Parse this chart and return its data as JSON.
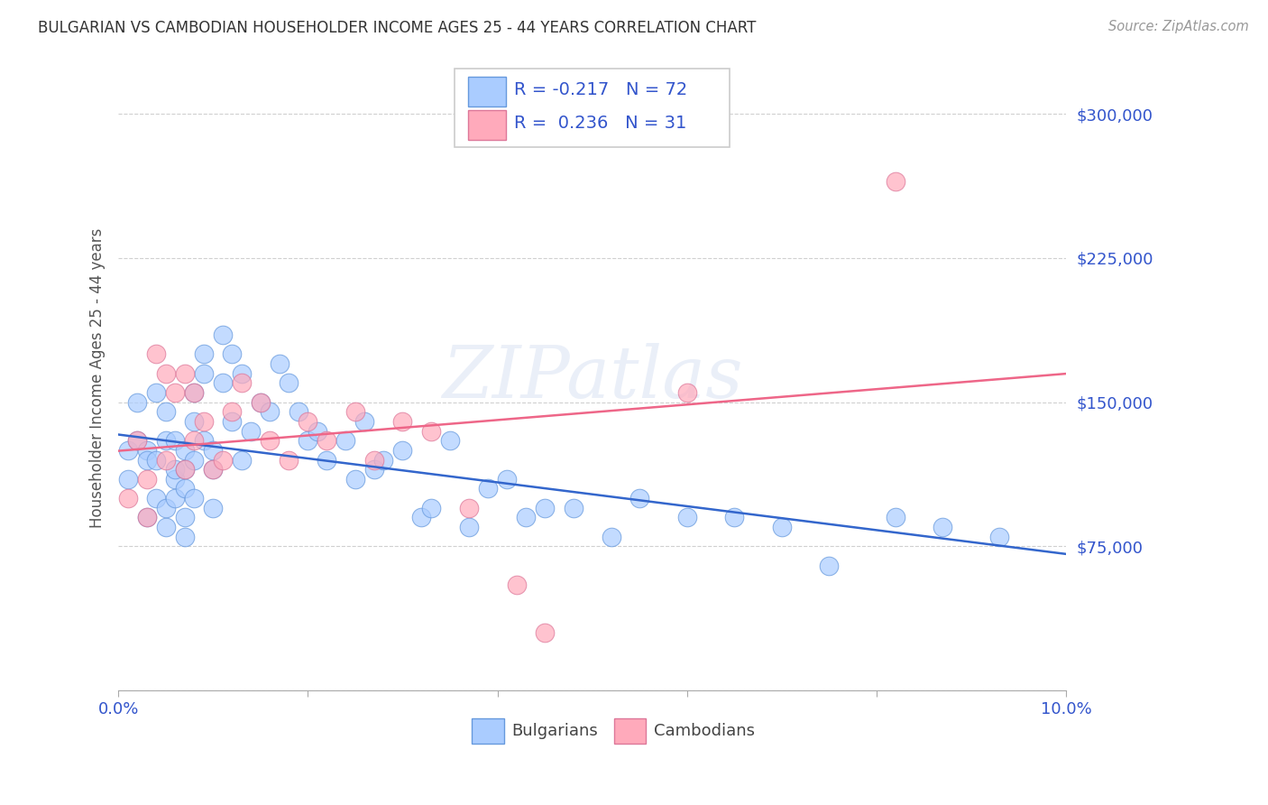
{
  "title": "BULGARIAN VS CAMBODIAN HOUSEHOLDER INCOME AGES 25 - 44 YEARS CORRELATION CHART",
  "source": "Source: ZipAtlas.com",
  "ylabel": "Householder Income Ages 25 - 44 years",
  "xlim": [
    0.0,
    0.1
  ],
  "ylim": [
    0,
    325000
  ],
  "yticks": [
    0,
    75000,
    150000,
    225000,
    300000
  ],
  "xticks": [
    0.0,
    0.02,
    0.04,
    0.06,
    0.08,
    0.1
  ],
  "background_color": "#ffffff",
  "grid_color": "#d0d0d0",
  "bulgarian_color": "#aaccff",
  "cambodian_color": "#ffaabb",
  "bulgarian_edge_color": "#6699dd",
  "cambodian_edge_color": "#dd7799",
  "bulgarian_line_color": "#3366cc",
  "cambodian_line_color": "#ee6688",
  "legend_bulgarian_label": "Bulgarians",
  "legend_cambodian_label": "Cambodians",
  "R_bulgarian": -0.217,
  "N_bulgarian": 72,
  "R_cambodian": 0.236,
  "N_cambodian": 31,
  "watermark": "ZIPatlas",
  "title_color": "#333333",
  "ylabel_color": "#555555",
  "tick_label_color": "#3355cc",
  "bulgarians_x": [
    0.001,
    0.001,
    0.002,
    0.002,
    0.003,
    0.003,
    0.003,
    0.004,
    0.004,
    0.004,
    0.005,
    0.005,
    0.005,
    0.005,
    0.006,
    0.006,
    0.006,
    0.006,
    0.007,
    0.007,
    0.007,
    0.007,
    0.007,
    0.008,
    0.008,
    0.008,
    0.008,
    0.009,
    0.009,
    0.009,
    0.01,
    0.01,
    0.01,
    0.011,
    0.011,
    0.012,
    0.012,
    0.013,
    0.013,
    0.014,
    0.015,
    0.016,
    0.017,
    0.018,
    0.019,
    0.02,
    0.021,
    0.022,
    0.024,
    0.025,
    0.026,
    0.027,
    0.028,
    0.03,
    0.032,
    0.033,
    0.035,
    0.037,
    0.039,
    0.041,
    0.043,
    0.045,
    0.048,
    0.052,
    0.055,
    0.06,
    0.065,
    0.07,
    0.075,
    0.082,
    0.087,
    0.093
  ],
  "bulgarians_y": [
    125000,
    110000,
    130000,
    150000,
    90000,
    125000,
    120000,
    100000,
    155000,
    120000,
    85000,
    95000,
    130000,
    145000,
    110000,
    115000,
    100000,
    130000,
    125000,
    105000,
    90000,
    115000,
    80000,
    155000,
    140000,
    120000,
    100000,
    175000,
    165000,
    130000,
    115000,
    125000,
    95000,
    185000,
    160000,
    140000,
    175000,
    120000,
    165000,
    135000,
    150000,
    145000,
    170000,
    160000,
    145000,
    130000,
    135000,
    120000,
    130000,
    110000,
    140000,
    115000,
    120000,
    125000,
    90000,
    95000,
    130000,
    85000,
    105000,
    110000,
    90000,
    95000,
    95000,
    80000,
    100000,
    90000,
    90000,
    85000,
    65000,
    90000,
    85000,
    80000
  ],
  "cambodians_x": [
    0.001,
    0.002,
    0.003,
    0.003,
    0.004,
    0.005,
    0.005,
    0.006,
    0.007,
    0.007,
    0.008,
    0.008,
    0.009,
    0.01,
    0.011,
    0.012,
    0.013,
    0.015,
    0.016,
    0.018,
    0.02,
    0.022,
    0.025,
    0.027,
    0.03,
    0.033,
    0.037,
    0.042,
    0.045,
    0.06,
    0.082
  ],
  "cambodians_y": [
    100000,
    130000,
    90000,
    110000,
    175000,
    165000,
    120000,
    155000,
    165000,
    115000,
    155000,
    130000,
    140000,
    115000,
    120000,
    145000,
    160000,
    150000,
    130000,
    120000,
    140000,
    130000,
    145000,
    120000,
    140000,
    135000,
    95000,
    55000,
    30000,
    155000,
    265000
  ]
}
